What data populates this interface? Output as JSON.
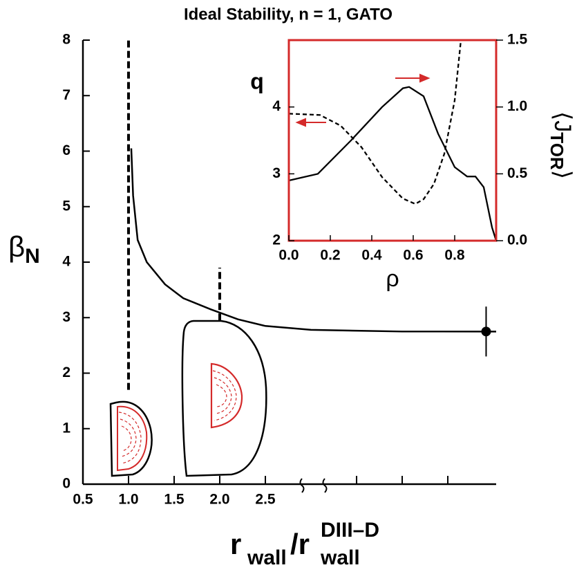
{
  "chart_data": [
    {
      "type": "line",
      "title": "Ideal Stability, n = 1, GATO",
      "ylabel": "β",
      "ylabel_sub": "N",
      "xlabel": [
        "r",
        "wall",
        "/r",
        "DIII–D",
        "wall"
      ],
      "xlim": [
        0.5,
        5.03
      ],
      "ylim": [
        0,
        8
      ],
      "xticks": [
        0.5,
        {
          "value": 1,
          "label": "1.0"
        },
        1.5,
        {
          "value": 2,
          "label": "2.0"
        },
        2.5
      ],
      "xticks_minor": [
        3.5,
        4,
        4.5
      ],
      "yticks": [
        0,
        1,
        2,
        3,
        4,
        5,
        6,
        7,
        8
      ],
      "series": [
        {
          "style": "solid",
          "x": [
            1.03,
            1.05,
            1.1,
            1.2,
            1.4,
            1.6,
            1.9,
            2.2,
            2.5,
            3,
            4,
            5.03
          ],
          "values": [
            6.05,
            5.2,
            4.4,
            4.0,
            3.6,
            3.35,
            3.15,
            2.97,
            2.85,
            2.78,
            2.75,
            2.75
          ]
        },
        {
          "style": "dashed",
          "x": [
            1.0,
            1.0
          ],
          "values": [
            1.7,
            8
          ]
        },
        {
          "style": "dashed",
          "x": [
            2.0,
            2.0
          ],
          "values": [
            2.95,
            3.9
          ]
        }
      ],
      "points": {
        "x": [
          4.92
        ],
        "values": [
          2.75
        ],
        "errors": [
          0.45
        ]
      }
    },
    {
      "type": "line",
      "xlabel": "ρ",
      "ylabel": "q",
      "y2label": [
        "⟨J",
        "TOR",
        "⟩"
      ],
      "xlim": [
        0,
        1
      ],
      "ylim": [
        2,
        5
      ],
      "y2lim": [
        0,
        1.5
      ],
      "xticks": [
        {
          "value": 0,
          "label": "0.0"
        },
        0.2,
        0.4,
        0.6,
        0.8
      ],
      "yticks": [
        2,
        3,
        4
      ],
      "y2ticks": [
        {
          "value": 0,
          "label": "0.0"
        },
        0.5,
        {
          "value": 1,
          "label": "1.0"
        },
        1.5
      ],
      "frame_color": "#d42a2a",
      "series": [
        {
          "style": "dashed",
          "axis": "y",
          "x": [
            0,
            0.15,
            0.25,
            0.35,
            0.45,
            0.55,
            0.61,
            0.65,
            0.7,
            0.75,
            0.8,
            0.83
          ],
          "values": [
            3.9,
            3.88,
            3.72,
            3.4,
            2.95,
            2.63,
            2.55,
            2.62,
            2.85,
            3.3,
            4.1,
            5.0
          ]
        },
        {
          "style": "solid",
          "axis": "y2",
          "x": [
            0,
            0.14,
            0.3,
            0.45,
            0.55,
            0.58,
            0.65,
            0.72,
            0.8,
            0.86,
            0.9,
            0.94,
            0.98,
            1.0
          ],
          "values": [
            0.45,
            0.5,
            0.75,
            1.0,
            1.14,
            1.15,
            1.08,
            0.8,
            0.55,
            0.48,
            0.48,
            0.4,
            0.1,
            0.0
          ]
        }
      ]
    }
  ]
}
